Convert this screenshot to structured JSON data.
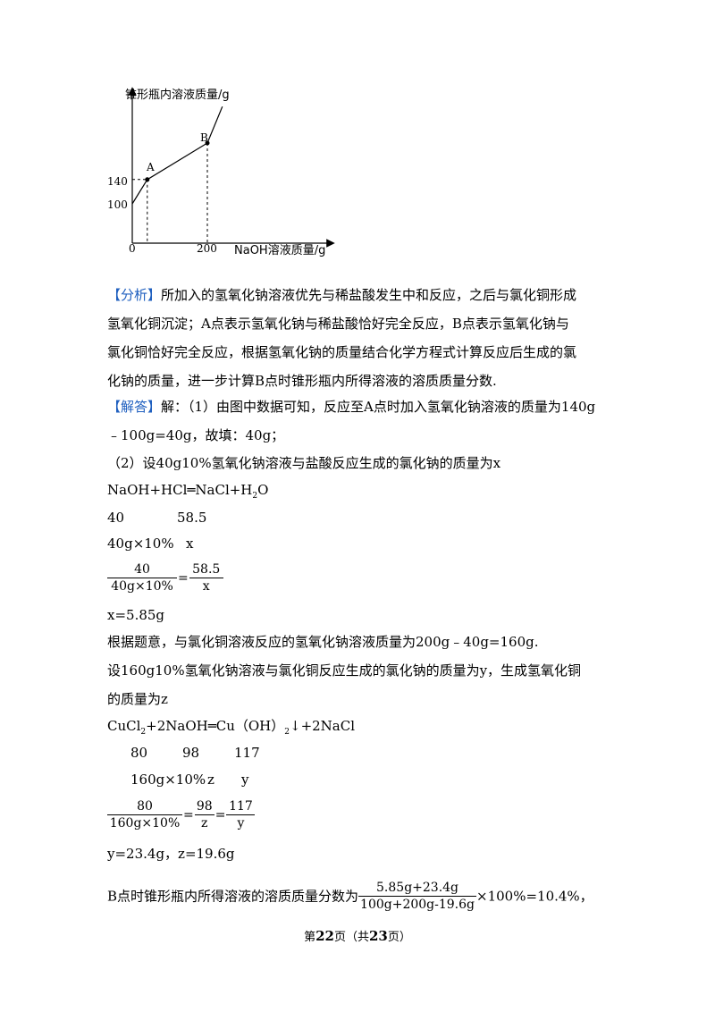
{
  "chart_data": {
    "type": "line",
    "ylabel": "锥形瓶内溶液质量/g",
    "xlabel": "NaOH溶液质量/g",
    "x_ticks": [
      "0",
      "200"
    ],
    "y_ticks": [
      "140",
      "100"
    ],
    "points": [
      {
        "label": "A",
        "x": 40,
        "y": 140
      },
      {
        "label": "B",
        "x": 200,
        "y": 200
      }
    ],
    "series": [
      {
        "x": [
          0,
          40,
          200,
          240
        ],
        "y": [
          100,
          140,
          200,
          260
        ]
      }
    ]
  },
  "analysis": {
    "tag": "【分析】",
    "lines": [
      "所加入的氢氧化钠溶液优先与稀盐酸发生中和反应，之后与氯化铜形成",
      "氢氧化铜沉淀；A点表示氢氧化钠与稀盐酸恰好完全反应，B点表示氢氧化钠与",
      "氯化铜恰好完全反应，根据氢氧化钠的质量结合化学方程式计算反应后生成的氯",
      "化钠的质量，进一步计算B点时锥形瓶内所得溶液的溶质质量分数."
    ]
  },
  "answer": {
    "tag": "【解答】",
    "line1": "解：（1）由图中数据可知，反应至A点时加入氢氧化钠溶液的质量为140g",
    "line2": "﹣100g=40g，故填：40g；",
    "line3": "（2）设40g10%氢氧化钠溶液与盐酸反应生成的氯化钠的质量为x",
    "eq1": "NaOH+HCl═NaCl+H",
    "eq1_sub": "2",
    "eq1_end": "O",
    "eq1_mass": [
      "40",
      "58.5"
    ],
    "eq1_given": [
      "40g×10%",
      "x"
    ],
    "frac1": {
      "num1": "40",
      "den1": "40g×10%",
      "num2": "58.5",
      "den2": "x"
    },
    "result1": "x=5.85g",
    "line4": "根据题意，与氯化铜溶液反应的氢氧化钠溶液质量为200g﹣40g=160g.",
    "line5": "设160g10%氢氧化钠溶液与氯化铜反应生成的氯化钠的质量为y，生成氢氧化铜",
    "line6": "的质量为z",
    "eq2_a": "CuCl",
    "eq2_sub1": "2",
    "eq2_b": "+2NaOH═Cu（OH）",
    "eq2_sub2": "2",
    "eq2_c": "↓+2NaCl",
    "eq2_mass": [
      "80",
      "98",
      "117"
    ],
    "eq2_given": [
      "160g×10%",
      "z",
      "y"
    ],
    "frac2": {
      "num1": "80",
      "den1": "160g×10%",
      "num2": "98",
      "den2": "z",
      "num3": "117",
      "den3": "y"
    },
    "result2": "y=23.4g，z=19.6g",
    "final_prefix": "B点时锥形瓶内所得溶液的溶质质量分数为",
    "final_num": "5.85g+23.4g",
    "final_den": "100g+200g-19.6g",
    "final_suffix": "×100%=10.4%，"
  },
  "footer": {
    "pre": "第",
    "page": "22",
    "mid": "页（共",
    "total": "23",
    "post": "页）"
  }
}
